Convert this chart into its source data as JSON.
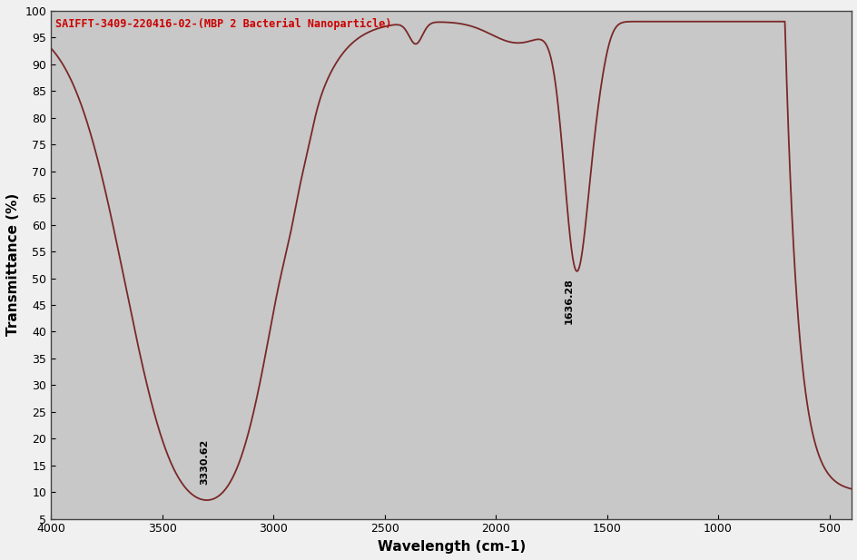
{
  "title": "SAIFFT-3409-220416-02-(MBP 2 Bacterial Nanoparticle)",
  "xlabel": "Wavelength (cm-1)",
  "ylabel": "Transmittance (%)",
  "title_color": "#cc0000",
  "line_color": "#7a2828",
  "background_color": "#c8c8c8",
  "fig_background": "#f0f0f0",
  "xlim": [
    4000,
    400
  ],
  "ylim": [
    5,
    100
  ],
  "xticks": [
    4000,
    3500,
    3000,
    2500,
    2000,
    1500,
    1000,
    500
  ],
  "yticks": [
    5,
    10,
    15,
    20,
    25,
    30,
    35,
    40,
    45,
    50,
    55,
    60,
    65,
    70,
    75,
    80,
    85,
    90,
    95,
    100
  ],
  "peak1_x": 3330.62,
  "peak1_y": 22.0,
  "peak1_label": "3330.62",
  "peak2_x": 1636.28,
  "peak2_y": 52.0,
  "peak2_label": "1636.28",
  "annotation_fontsize": 8
}
